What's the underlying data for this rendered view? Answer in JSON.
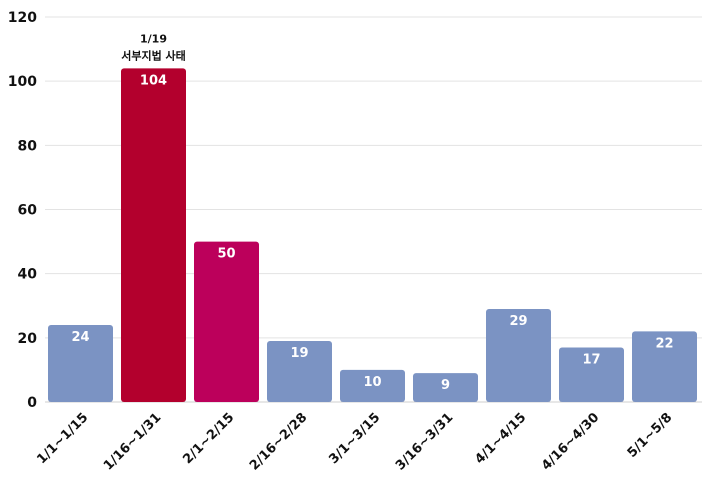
{
  "chart_data": {
    "type": "bar",
    "title": "",
    "xlabel": "",
    "ylabel": "",
    "ylim": [
      0,
      120
    ],
    "yticks": [
      0,
      20,
      40,
      60,
      80,
      100,
      120
    ],
    "grid": true,
    "categories": [
      "1/1~1/15",
      "1/16~1/31",
      "2/1~2/15",
      "2/16~2/28",
      "3/1~3/15",
      "3/16~3/31",
      "4/1~4/15",
      "4/16~4/30",
      "5/1~5/8"
    ],
    "values": [
      24,
      104,
      50,
      19,
      10,
      9,
      29,
      17,
      22
    ],
    "colors": [
      "#7b93c3",
      "#b3002d",
      "#bc005b",
      "#7b93c3",
      "#7b93c3",
      "#7b93c3",
      "#7b93c3",
      "#7b93c3",
      "#7b93c3"
    ],
    "annotations": [
      {
        "category": "1/16~1/31",
        "lines": [
          "1/19",
          "서부지법 사태"
        ]
      }
    ]
  }
}
